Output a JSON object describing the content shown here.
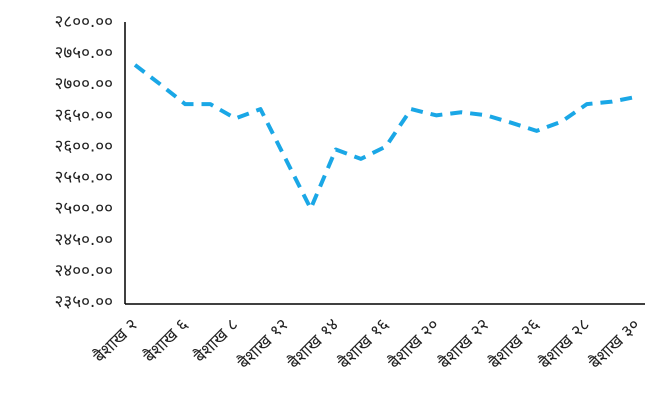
{
  "chart_data": {
    "type": "line",
    "categories": [
      "बैशाख २",
      null,
      "बैशाख ६",
      null,
      "बैशाख ८",
      null,
      "बैशाख १२",
      null,
      "बैशाख १४",
      null,
      "बैशाख १६",
      null,
      "बैशाख २०",
      null,
      "बैशाख २२",
      null,
      "बैशाख २६",
      null,
      "बैशाख २८",
      null,
      "बैशाख ३०"
    ],
    "series": [
      {
        "color": "#1aa7e6",
        "values": [
          2731,
          2700,
          2668,
          2668,
          2645,
          2660,
          2580,
          2500,
          2595,
          2580,
          2600,
          2660,
          2650,
          2655,
          2650,
          2638,
          2625,
          2640,
          2668,
          2672,
          2680
        ]
      }
    ],
    "ylim": [
      2350,
      2800
    ],
    "yticks": [
      {
        "value": 2350,
        "label": "२३५०.००"
      },
      {
        "value": 2400,
        "label": "२४००.००"
      },
      {
        "value": 2450,
        "label": "२४५०.००"
      },
      {
        "value": 2500,
        "label": "२५००.००"
      },
      {
        "value": 2550,
        "label": "२५५०.००"
      },
      {
        "value": 2600,
        "label": "२६००.००"
      },
      {
        "value": 2650,
        "label": "२६५०.००"
      },
      {
        "value": 2700,
        "label": "२७००.००"
      },
      {
        "value": 2750,
        "label": "२७५०.००"
      },
      {
        "value": 2800,
        "label": "२८००.००"
      }
    ],
    "grid": false
  }
}
